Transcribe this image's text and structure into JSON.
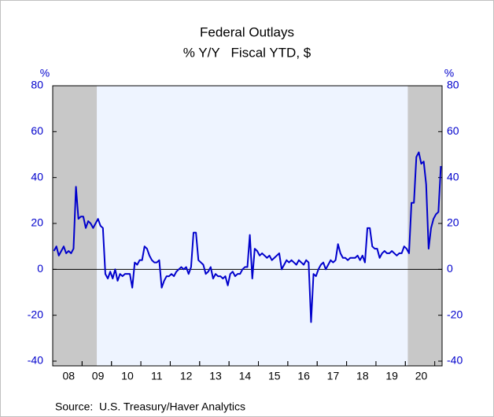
{
  "chart_data": {
    "type": "line",
    "title": "Federal Outlays",
    "subtitle": "% Y/Y   Fiscal YTD, $",
    "y_unit": "%",
    "y2_unit": "%",
    "source": "Source:  U.S. Treasury/Haver Analytics",
    "categories": [
      null,
      null,
      null,
      null,
      null,
      null,
      "08",
      null,
      null,
      null,
      null,
      null,
      null,
      null,
      null,
      null,
      null,
      null,
      "09",
      null,
      null,
      null,
      null,
      null,
      null,
      null,
      null,
      null,
      null,
      null,
      "10",
      null,
      null,
      null,
      null,
      null,
      null,
      null,
      null,
      null,
      null,
      null,
      "11",
      null,
      null,
      null,
      null,
      null,
      null,
      null,
      null,
      null,
      null,
      null,
      "12",
      null,
      null,
      null,
      null,
      null,
      null,
      null,
      null,
      null,
      null,
      null,
      "13",
      null,
      null,
      null,
      null,
      null,
      null,
      null,
      null,
      null,
      null,
      null,
      "14",
      null,
      null,
      null,
      null,
      null,
      null,
      null,
      null,
      null,
      null,
      null,
      "15",
      null,
      null,
      null,
      null,
      null,
      null,
      null,
      null,
      null,
      null,
      null,
      "16",
      null,
      null,
      null,
      null,
      null,
      null,
      null,
      null,
      null,
      null,
      null,
      "17",
      null,
      null,
      null,
      null,
      null,
      null,
      null,
      null,
      null,
      null,
      null,
      "18",
      null,
      null,
      null,
      null,
      null,
      null,
      null,
      null,
      null,
      null,
      null,
      "19",
      null,
      null,
      null,
      null,
      null,
      null,
      null,
      null,
      null,
      null,
      null,
      "20",
      null,
      null,
      null,
      null,
      null,
      null,
      null,
      null
    ],
    "series": [
      {
        "name": "Federal Outlays",
        "color": "#0000cc",
        "values": [
          8,
          10,
          6,
          8,
          10,
          7,
          8,
          7,
          9,
          36,
          22,
          23,
          23,
          18,
          21,
          20,
          18,
          20,
          22,
          19,
          18,
          -2,
          -4,
          -1,
          -4,
          0,
          -5,
          -2,
          -3,
          -2,
          -2,
          -2,
          -8,
          3,
          2,
          4,
          4,
          10,
          9,
          6,
          4,
          3,
          3,
          4,
          -8,
          -5,
          -3,
          -3,
          -2,
          -3,
          -1,
          0,
          1,
          0,
          1,
          -2,
          1,
          16,
          16,
          4,
          3,
          2,
          -2,
          -1,
          1,
          -4,
          -2,
          -3,
          -3,
          -4,
          -3,
          -7,
          -2,
          -1,
          -3,
          -2,
          -2,
          0,
          1,
          1,
          15,
          -4,
          9,
          8,
          6,
          7,
          6,
          5,
          6,
          4,
          5,
          6,
          7,
          0,
          2,
          4,
          3,
          4,
          3,
          2,
          4,
          3,
          2,
          4,
          3,
          -23,
          -2,
          -3,
          0,
          2,
          3,
          0,
          2,
          4,
          3,
          4,
          11,
          7,
          5,
          5,
          4,
          5,
          5,
          5,
          6,
          4,
          6,
          3,
          18,
          18,
          10,
          9,
          9,
          5,
          7,
          8,
          7,
          7,
          8,
          7,
          6,
          7,
          7,
          10,
          9,
          7,
          29,
          29,
          49,
          51,
          46,
          47,
          37,
          9,
          18,
          22,
          24,
          25,
          45
        ]
      }
    ],
    "recession_shading": [
      {
        "from": 0,
        "to": 18
      },
      {
        "from": 145,
        "to": 159
      }
    ],
    "ylim": [
      -40,
      80
    ],
    "yticks": [
      -40,
      -20,
      0,
      20,
      40,
      60,
      80
    ],
    "y2lim": [
      -40,
      80
    ],
    "y2ticks": [
      -40,
      -20,
      0,
      20,
      40,
      60,
      80
    ],
    "zero_line": true
  }
}
